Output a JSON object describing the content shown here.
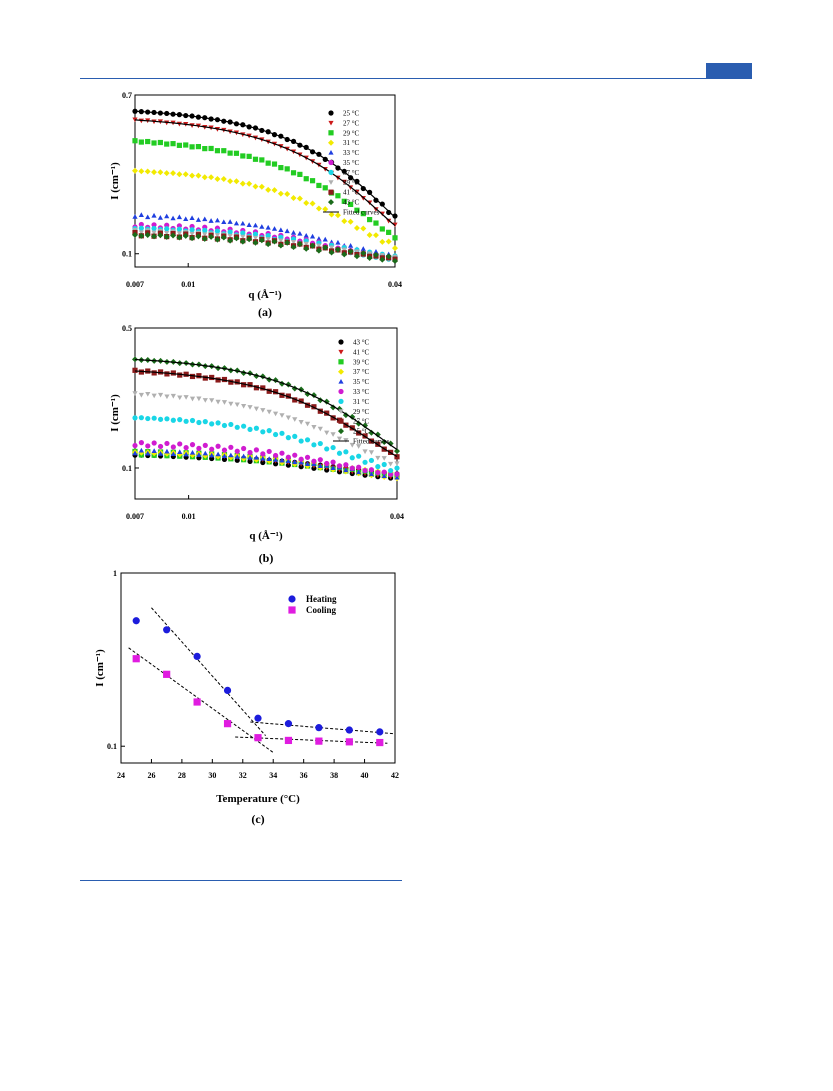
{
  "page": {
    "accent": "#2a5db0"
  },
  "chart_data": [
    {
      "id": "a",
      "type": "scatter",
      "caption": "(a)",
      "xlabel": "q (Å⁻¹)",
      "ylabel": "I (cm⁻¹)",
      "xscale": "log",
      "yscale": "log",
      "xlim": [
        0.007,
        0.04
      ],
      "ylim": [
        0.085,
        0.7
      ],
      "xticks": [
        "0.007",
        "0.01",
        "0.04"
      ],
      "yticks": [
        "0.7",
        "0.1"
      ],
      "legend_position": "top-right",
      "fit_label": "Fitted curves",
      "series": [
        {
          "name": "25 °C",
          "color": "#000000",
          "marker": "circle",
          "I0": 0.605,
          "B": 0.09,
          "R": 62,
          "fit": true
        },
        {
          "name": "27 °C",
          "color": "#cc1a1a",
          "marker": "tri-down",
          "I0": 0.545,
          "B": 0.09,
          "R": 64,
          "fit": true
        },
        {
          "name": "29 °C",
          "color": "#22cc22",
          "marker": "square",
          "I0": 0.42,
          "B": 0.09,
          "R": 66,
          "fit": false
        },
        {
          "name": "31 °C",
          "color": "#f2ea00",
          "marker": "diamond",
          "I0": 0.29,
          "B": 0.09,
          "R": 66,
          "fit": false
        },
        {
          "name": "33 °C",
          "color": "#1f3fe0",
          "marker": "tri-up",
          "I0": 0.165,
          "B": 0.09,
          "R": 68,
          "fit": false
        },
        {
          "name": "35 °C",
          "color": "#d01cd0",
          "marker": "circle",
          "I0": 0.145,
          "B": 0.09,
          "R": 66,
          "fit": false
        },
        {
          "name": "37 °C",
          "color": "#19d6e6",
          "marker": "circle",
          "I0": 0.14,
          "B": 0.09,
          "R": 66,
          "fit": false
        },
        {
          "name": "39 °C",
          "color": "#b0b0b0",
          "marker": "tri-down",
          "I0": 0.135,
          "B": 0.09,
          "R": 66,
          "fit": false
        },
        {
          "name": "41 °C",
          "color": "#8b1a1a",
          "marker": "square",
          "I0": 0.13,
          "B": 0.09,
          "R": 66,
          "fit": false
        },
        {
          "name": "43 °C",
          "color": "#1a6b1a",
          "marker": "diamond",
          "I0": 0.128,
          "B": 0.09,
          "R": 66,
          "fit": false
        }
      ]
    },
    {
      "id": "b",
      "type": "scatter",
      "caption": "(b)",
      "xlabel": "q (Å⁻¹)",
      "ylabel": "I (cm⁻¹)",
      "xscale": "log",
      "yscale": "log",
      "xlim": [
        0.007,
        0.04
      ],
      "ylim": [
        0.07,
        0.5
      ],
      "xticks": [
        "0.007",
        "0.01",
        "0.04"
      ],
      "yticks": [
        "0.5",
        "0.1"
      ],
      "legend_position": "top-right",
      "fit_label": "Fitted curves",
      "series": [
        {
          "name": "43 °C",
          "color": "#000000",
          "marker": "circle",
          "I0": 0.118,
          "B": 0.088,
          "R": 66,
          "fit": false
        },
        {
          "name": "41 °C",
          "color": "#cc1a1a",
          "marker": "tri-down",
          "I0": 0.12,
          "B": 0.088,
          "R": 66,
          "fit": false
        },
        {
          "name": "39 °C",
          "color": "#22cc22",
          "marker": "square",
          "I0": 0.121,
          "B": 0.088,
          "R": 66,
          "fit": false
        },
        {
          "name": "37 °C",
          "color": "#f2ea00",
          "marker": "diamond",
          "I0": 0.122,
          "B": 0.088,
          "R": 66,
          "fit": false
        },
        {
          "name": "35 °C",
          "color": "#1f3fe0",
          "marker": "tri-up",
          "I0": 0.123,
          "B": 0.088,
          "R": 66,
          "fit": false
        },
        {
          "name": "33 °C",
          "color": "#d01cd0",
          "marker": "circle",
          "I0": 0.135,
          "B": 0.088,
          "R": 66,
          "fit": false
        },
        {
          "name": "31 °C",
          "color": "#19d6e6",
          "marker": "circle",
          "I0": 0.185,
          "B": 0.088,
          "R": 66,
          "fit": false
        },
        {
          "name": "29 °C",
          "color": "#b0b0b0",
          "marker": "tri-down",
          "I0": 0.245,
          "B": 0.088,
          "R": 66,
          "fit": false
        },
        {
          "name": "27 °C",
          "color": "#8b1a1a",
          "marker": "square",
          "I0": 0.32,
          "B": 0.088,
          "R": 64,
          "fit": true
        },
        {
          "name": "25 °C",
          "color": "#1a6b1a",
          "marker": "diamond",
          "I0": 0.365,
          "B": 0.088,
          "R": 62,
          "fit": true
        }
      ]
    },
    {
      "id": "c",
      "type": "scatter",
      "caption": "(c)",
      "xlabel": "Temperature (°C)",
      "ylabel": "I (cm⁻¹)",
      "xscale": "linear",
      "yscale": "log",
      "xlim": [
        24,
        42
      ],
      "ylim": [
        0.08,
        1
      ],
      "xticks": [
        24,
        26,
        28,
        30,
        32,
        34,
        36,
        38,
        40,
        42
      ],
      "yticks": [
        "1",
        "0.1"
      ],
      "legend_position": "top-right",
      "series": [
        {
          "name": "Heating",
          "color": "#1c1cdc",
          "marker": "circle",
          "x": [
            25,
            27,
            29,
            31,
            33,
            35,
            37,
            39,
            41
          ],
          "y": [
            0.53,
            0.47,
            0.33,
            0.21,
            0.145,
            0.135,
            0.128,
            0.124,
            0.121
          ]
        },
        {
          "name": "Cooling",
          "color": "#e01ce0",
          "marker": "square",
          "x": [
            25,
            27,
            29,
            31,
            33,
            35,
            37,
            39,
            41
          ],
          "y": [
            0.32,
            0.26,
            0.18,
            0.135,
            0.112,
            0.108,
            0.107,
            0.106,
            0.105
          ]
        }
      ],
      "trend_lines": [
        {
          "x": [
            26,
            33.5
          ],
          "y": [
            0.63,
            0.115
          ]
        },
        {
          "x": [
            24.5,
            34
          ],
          "y": [
            0.37,
            0.092
          ]
        },
        {
          "x": [
            32.5,
            42
          ],
          "y": [
            0.138,
            0.118
          ]
        },
        {
          "x": [
            31.5,
            41.5
          ],
          "y": [
            0.113,
            0.104
          ]
        }
      ]
    }
  ]
}
